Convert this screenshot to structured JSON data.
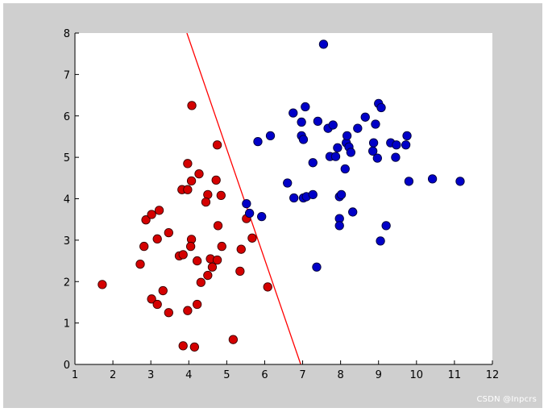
{
  "chart_data": {
    "type": "scatter",
    "title": "",
    "xlabel": "",
    "ylabel": "",
    "xlim": [
      1,
      12
    ],
    "ylim": [
      0,
      8
    ],
    "x_ticks": [
      1,
      2,
      3,
      4,
      5,
      6,
      7,
      8,
      9,
      10,
      11,
      12
    ],
    "y_ticks": [
      0,
      1,
      2,
      3,
      4,
      5,
      6,
      7,
      8
    ],
    "grid": false,
    "background": "#ffffff",
    "figure_background": "#cfcfcf",
    "series": [
      {
        "color": "#d40000",
        "edge_color": "#3a0000",
        "points": [
          [
            1.72,
            1.93
          ],
          [
            2.72,
            2.42
          ],
          [
            2.82,
            2.85
          ],
          [
            2.87,
            3.49
          ],
          [
            3.02,
            3.62
          ],
          [
            3.22,
            3.72
          ],
          [
            3.17,
            3.03
          ],
          [
            3.47,
            3.18
          ],
          [
            3.02,
            1.58
          ],
          [
            3.17,
            1.45
          ],
          [
            3.32,
            1.78
          ],
          [
            3.47,
            1.25
          ],
          [
            3.75,
            2.62
          ],
          [
            3.85,
            2.65
          ],
          [
            3.82,
            4.22
          ],
          [
            3.97,
            4.22
          ],
          [
            3.97,
            4.85
          ],
          [
            4.08,
            6.25
          ],
          [
            4.07,
            4.43
          ],
          [
            4.27,
            4.6
          ],
          [
            4.07,
            3.02
          ],
          [
            4.05,
            2.85
          ],
          [
            4.22,
            2.5
          ],
          [
            3.97,
            1.3
          ],
          [
            4.22,
            1.45
          ],
          [
            4.32,
            1.98
          ],
          [
            4.5,
            4.1
          ],
          [
            4.45,
            3.92
          ],
          [
            4.5,
            2.15
          ],
          [
            4.57,
            2.55
          ],
          [
            4.62,
            2.35
          ],
          [
            4.75,
            2.52
          ],
          [
            4.77,
            3.35
          ],
          [
            4.72,
            4.45
          ],
          [
            4.75,
            5.3
          ],
          [
            4.85,
            4.08
          ],
          [
            4.87,
            2.85
          ],
          [
            3.85,
            0.45
          ],
          [
            4.15,
            0.42
          ],
          [
            5.17,
            0.6
          ],
          [
            5.35,
            2.25
          ],
          [
            5.38,
            2.78
          ],
          [
            5.52,
            3.52
          ],
          [
            5.67,
            3.05
          ],
          [
            6.08,
            1.87
          ]
        ]
      },
      {
        "color": "#0000c8",
        "edge_color": "#00003a",
        "points": [
          [
            5.52,
            3.88
          ],
          [
            5.6,
            3.65
          ],
          [
            5.92,
            3.57
          ],
          [
            5.82,
            5.38
          ],
          [
            6.15,
            5.52
          ],
          [
            6.6,
            4.38
          ],
          [
            6.75,
            6.07
          ],
          [
            6.77,
            4.02
          ],
          [
            6.97,
            5.52
          ],
          [
            7.07,
            6.22
          ],
          [
            6.97,
            5.85
          ],
          [
            7.02,
            5.43
          ],
          [
            7.02,
            4.02
          ],
          [
            7.1,
            4.05
          ],
          [
            7.27,
            4.1
          ],
          [
            7.27,
            4.87
          ],
          [
            7.4,
            5.87
          ],
          [
            7.37,
            2.35
          ],
          [
            7.55,
            7.73
          ],
          [
            7.67,
            5.7
          ],
          [
            7.72,
            5.02
          ],
          [
            7.8,
            5.78
          ],
          [
            7.87,
            5.02
          ],
          [
            7.92,
            5.23
          ],
          [
            7.97,
            4.05
          ],
          [
            8.02,
            4.1
          ],
          [
            7.97,
            3.52
          ],
          [
            7.97,
            3.35
          ],
          [
            8.12,
            4.72
          ],
          [
            8.15,
            5.35
          ],
          [
            8.22,
            5.25
          ],
          [
            8.17,
            5.52
          ],
          [
            8.27,
            5.12
          ],
          [
            8.32,
            3.68
          ],
          [
            8.45,
            5.7
          ],
          [
            8.65,
            5.97
          ],
          [
            8.85,
            5.15
          ],
          [
            8.87,
            5.35
          ],
          [
            8.92,
            5.8
          ],
          [
            8.97,
            4.98
          ],
          [
            9.0,
            6.3
          ],
          [
            9.07,
            6.2
          ],
          [
            9.05,
            2.98
          ],
          [
            9.2,
            3.35
          ],
          [
            9.32,
            5.35
          ],
          [
            9.45,
            5.0
          ],
          [
            9.47,
            5.3
          ],
          [
            9.72,
            5.3
          ],
          [
            9.75,
            5.52
          ],
          [
            9.8,
            4.42
          ],
          [
            10.42,
            4.48
          ],
          [
            11.15,
            4.42
          ]
        ]
      }
    ],
    "lines": [
      {
        "color": "#ff0000",
        "points": [
          [
            3.95,
            8.0
          ],
          [
            6.95,
            0.0
          ]
        ]
      }
    ]
  },
  "watermark": "CSDN @Inpcrs"
}
